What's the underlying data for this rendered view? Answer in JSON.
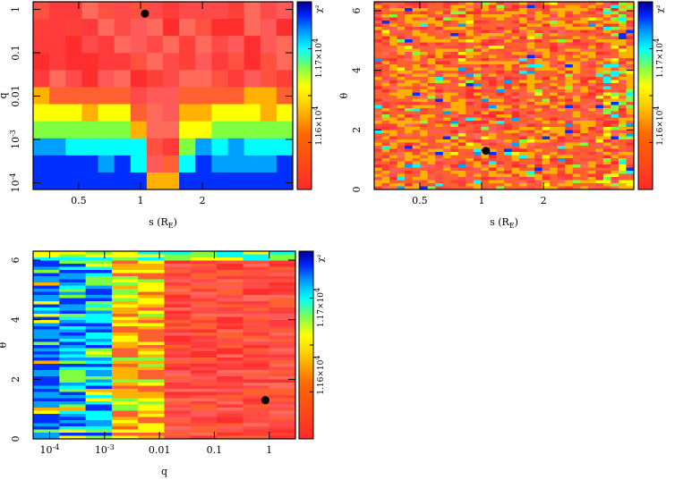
{
  "chart_data": [
    {
      "type": "heatmap",
      "panel": "top-left",
      "xlabel": "s (R_E)",
      "ylabel": "q",
      "x_scale": "log",
      "y_scale": "log",
      "xlim": [
        0.3,
        5.5
      ],
      "ylim": [
        7e-05,
        1.5
      ],
      "x_ticks": [
        {
          "value": 0.5,
          "label": "0.5"
        },
        {
          "value": 1,
          "label": "1"
        },
        {
          "value": 2,
          "label": "2"
        }
      ],
      "y_ticks": [
        {
          "value": 1,
          "label": "1"
        },
        {
          "value": 0.1,
          "label": "0.1"
        },
        {
          "value": 0.01,
          "label": "0.01"
        },
        {
          "value": 0.001,
          "label": "10^-3"
        },
        {
          "value": 0.0001,
          "label": "10^-4"
        }
      ],
      "colorbar_title": "χ²",
      "colorbar_ticks": [
        "1.17×10^4",
        "1.16×10^4"
      ],
      "best_fit_point": {
        "x": 1.05,
        "y": 0.8
      }
    },
    {
      "type": "heatmap",
      "panel": "top-right",
      "xlabel": "s (R_E)",
      "ylabel": "θ",
      "x_scale": "log",
      "y_scale": "linear",
      "xlim": [
        0.3,
        5.5
      ],
      "ylim": [
        0,
        6.3
      ],
      "x_ticks": [
        {
          "value": 0.5,
          "label": "0.5"
        },
        {
          "value": 1,
          "label": "1"
        },
        {
          "value": 2,
          "label": "2"
        }
      ],
      "y_ticks": [
        {
          "value": 0,
          "label": "0"
        },
        {
          "value": 2,
          "label": "2"
        },
        {
          "value": 4,
          "label": "4"
        },
        {
          "value": 6,
          "label": "6"
        }
      ],
      "colorbar_title": "χ²",
      "colorbar_ticks": [
        "1.17×10^4",
        "1.16×10^4"
      ],
      "best_fit_point": {
        "x": 1.05,
        "y": 1.3
      }
    },
    {
      "type": "heatmap",
      "panel": "bottom-left",
      "xlabel": "q",
      "ylabel": "θ",
      "x_scale": "log",
      "y_scale": "linear",
      "xlim": [
        5e-05,
        3
      ],
      "ylim": [
        0,
        6.3
      ],
      "x_ticks": [
        {
          "value": 0.0001,
          "label": "10^-4"
        },
        {
          "value": 0.001,
          "label": "10^-3"
        },
        {
          "value": 0.01,
          "label": "0.01"
        },
        {
          "value": 0.1,
          "label": "0.1"
        },
        {
          "value": 1,
          "label": "1"
        }
      ],
      "y_ticks": [
        {
          "value": 0,
          "label": "0"
        },
        {
          "value": 2,
          "label": "2"
        },
        {
          "value": 4,
          "label": "4"
        },
        {
          "value": 6,
          "label": "6"
        }
      ],
      "colorbar_title": "χ²",
      "colorbar_ticks": [
        "1.17×10^4",
        "1.16×10^4"
      ],
      "best_fit_point": {
        "x": 0.85,
        "y": 1.3
      }
    }
  ],
  "colormap": [
    "#ff3030",
    "#ff6030",
    "#ffb000",
    "#ffff00",
    "#80ff40",
    "#00ffff",
    "#00a0ff",
    "#0030ff",
    "#0000a0"
  ]
}
